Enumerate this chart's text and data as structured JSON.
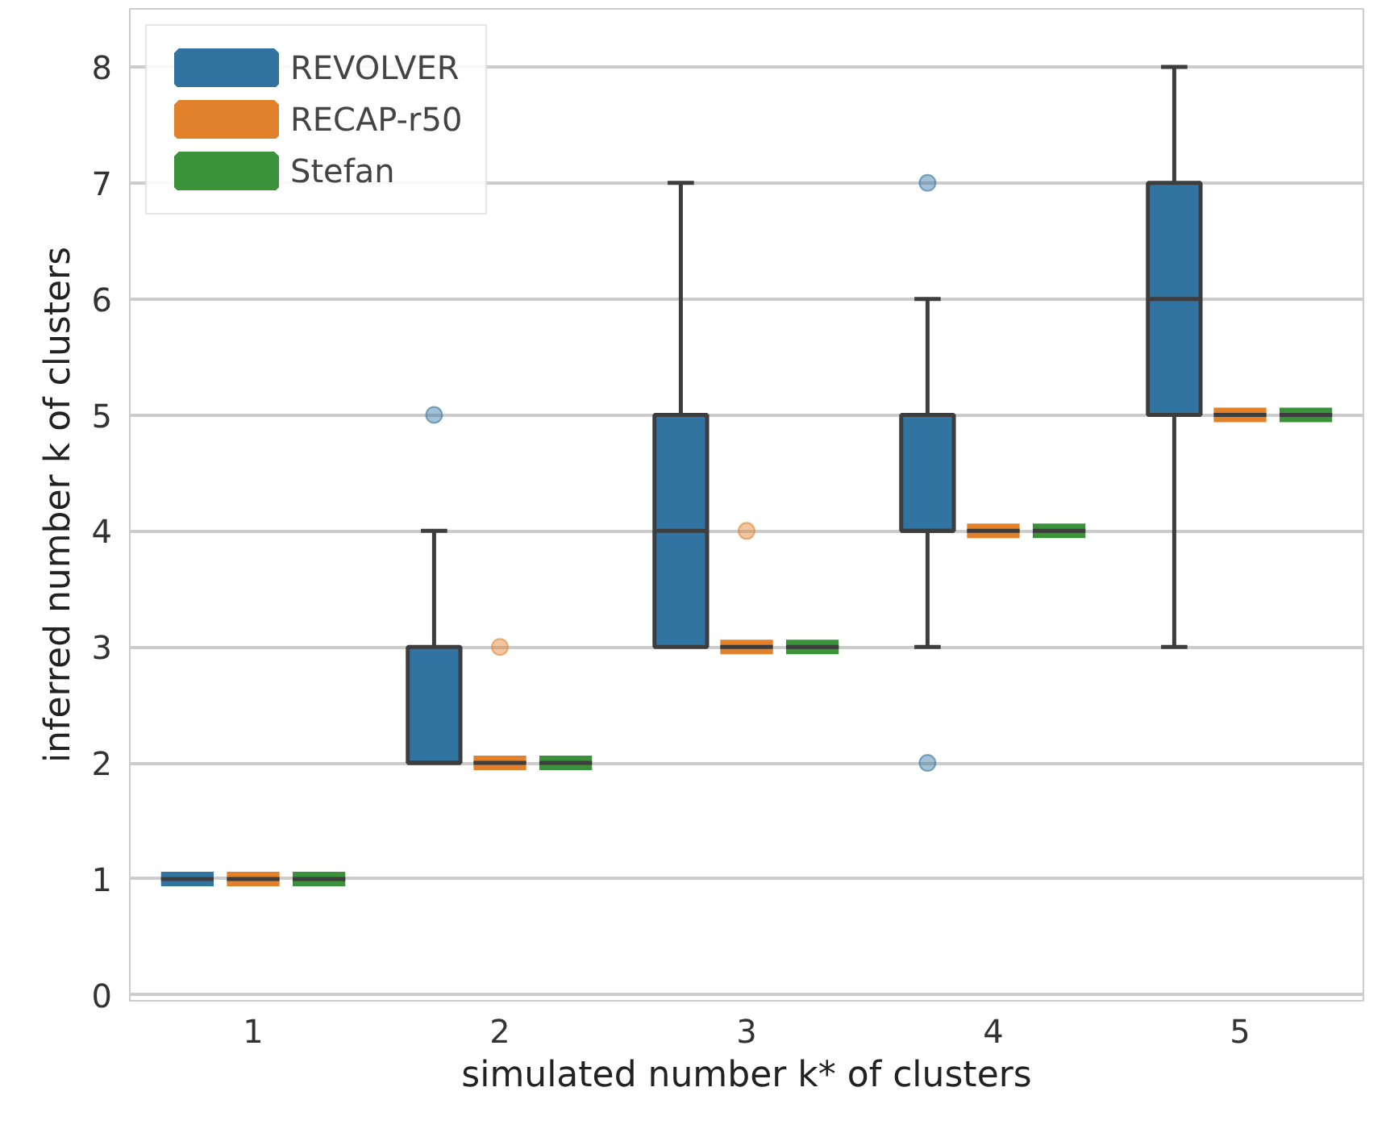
{
  "chart_data": {
    "type": "box",
    "xlabel": "simulated number k* of clusters",
    "ylabel": "inferred number k of clusters",
    "categories": [
      "1",
      "2",
      "3",
      "4",
      "5"
    ],
    "ylim": [
      -0.05,
      8.5
    ],
    "yticks": [
      0,
      1,
      2,
      3,
      4,
      5,
      6,
      7,
      8
    ],
    "grid": "y",
    "legend": "top left",
    "series": [
      {
        "name": "REVOLVER",
        "color": "#3274a1",
        "boxes": [
          {
            "low": 1,
            "q1": 1,
            "median": 1,
            "q3": 1,
            "high": 1
          },
          {
            "low": 2,
            "q1": 2,
            "median": 2,
            "q3": 3,
            "high": 4,
            "outliers": [
              5
            ]
          },
          {
            "low": 3,
            "q1": 3,
            "median": 4,
            "q3": 5,
            "high": 7
          },
          {
            "low": 3,
            "q1": 4,
            "median": 4,
            "q3": 5,
            "high": 6,
            "outliers": [
              2,
              7
            ]
          },
          {
            "low": 3,
            "q1": 5,
            "median": 6,
            "q3": 7,
            "high": 8
          }
        ]
      },
      {
        "name": "RECAP-r50",
        "color": "#e1812c",
        "boxes": [
          {
            "low": 1,
            "q1": 1,
            "median": 1,
            "q3": 1,
            "high": 1
          },
          {
            "low": 2,
            "q1": 2,
            "median": 2,
            "q3": 2,
            "high": 2,
            "outliers": [
              3
            ]
          },
          {
            "low": 3,
            "q1": 3,
            "median": 3,
            "q3": 3,
            "high": 3,
            "outliers": [
              4
            ]
          },
          {
            "low": 4,
            "q1": 4,
            "median": 4,
            "q3": 4,
            "high": 4
          },
          {
            "low": 5,
            "q1": 5,
            "median": 5,
            "q3": 5,
            "high": 5
          }
        ]
      },
      {
        "name": "Stefan",
        "color": "#3a923a",
        "boxes": [
          {
            "low": 1,
            "q1": 1,
            "median": 1,
            "q3": 1,
            "high": 1
          },
          {
            "low": 2,
            "q1": 2,
            "median": 2,
            "q3": 2,
            "high": 2
          },
          {
            "low": 3,
            "q1": 3,
            "median": 3,
            "q3": 3,
            "high": 3
          },
          {
            "low": 4,
            "q1": 4,
            "median": 4,
            "q3": 4,
            "high": 4
          },
          {
            "low": 5,
            "q1": 5,
            "median": 5,
            "q3": 5,
            "high": 5
          }
        ]
      }
    ]
  }
}
